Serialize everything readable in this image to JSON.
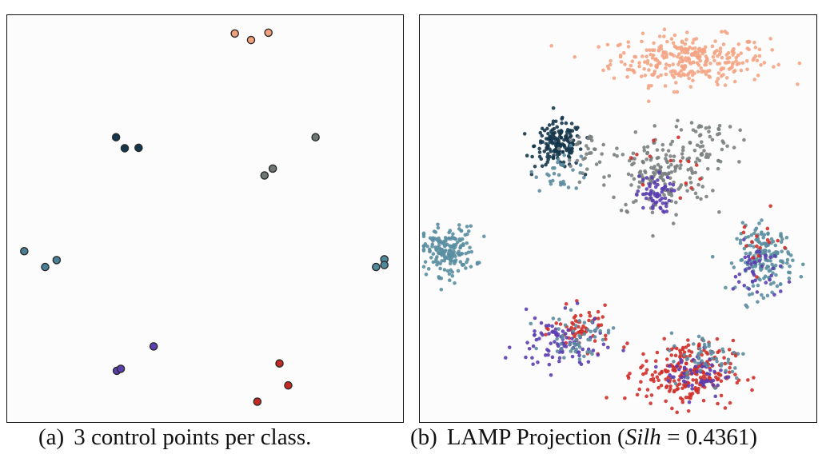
{
  "chart_data": [
    {
      "type": "scatter",
      "caption": {
        "label": "(a)",
        "text": "3 control points per class."
      },
      "xlim": [
        0,
        100
      ],
      "ylim": [
        0,
        100
      ],
      "grid": false,
      "point_style": "large-outlined",
      "classes": [
        {
          "color": "#f1a07e",
          "points": [
            [
              57.5,
              95.5
            ],
            [
              61.6,
              93.9
            ],
            [
              66.0,
              95.7
            ]
          ]
        },
        {
          "color": "#15374d",
          "points": [
            [
              27.5,
              70.0
            ],
            [
              29.7,
              67.3
            ],
            [
              33.2,
              67.4
            ]
          ]
        },
        {
          "color": "#6e7776",
          "points": [
            [
              77.9,
              70.0
            ],
            [
              65.0,
              60.6
            ],
            [
              67.1,
              62.3
            ]
          ]
        },
        {
          "color": "#4a8095",
          "points": [
            [
              4.3,
              42.0
            ],
            [
              9.6,
              38.1
            ],
            [
              12.5,
              39.8
            ]
          ]
        },
        {
          "color": "#508a9b",
          "points": [
            [
              93.2,
              38.1
            ],
            [
              95.3,
              40.0
            ],
            [
              95.3,
              38.6
            ]
          ]
        },
        {
          "color": "#5b3eb0",
          "points": [
            [
              37.0,
              18.6
            ],
            [
              27.7,
              12.6
            ],
            [
              28.7,
              13.1
            ]
          ]
        },
        {
          "color": "#c42a23",
          "points": [
            [
              68.8,
              14.4
            ],
            [
              71.0,
              9.0
            ],
            [
              63.2,
              5.0
            ]
          ]
        }
      ]
    },
    {
      "type": "scatter",
      "caption": {
        "label": "(b)",
        "text_prefix": "LAMP Projection (",
        "metric": "Silh",
        "text_suffix": " = 0.4361)"
      },
      "xlim": [
        0,
        100
      ],
      "ylim": [
        0,
        100
      ],
      "grid": false,
      "point_style": "small-dots",
      "clusters": [
        {
          "color": "#f4a484",
          "cx": 68,
          "cy": 89,
          "sx": 10,
          "sy": 3.0,
          "n": 300
        },
        {
          "color": "#15374d",
          "cx": 35,
          "cy": 68,
          "sx": 3.0,
          "sy": 2.8,
          "n": 170
        },
        {
          "color": "#5d8ca0",
          "cx": 36,
          "cy": 62,
          "sx": 3.5,
          "sy": 2.5,
          "n": 30
        },
        {
          "color": "#7a7f7f",
          "cx": 42,
          "cy": 67,
          "sx": 3.0,
          "sy": 2.0,
          "n": 30
        },
        {
          "color": "#7a7f7f",
          "cx": 60,
          "cy": 60,
          "sx": 6.5,
          "sy": 5.0,
          "n": 160
        },
        {
          "color": "#7a7f7f",
          "cx": 71,
          "cy": 69,
          "sx": 4.5,
          "sy": 3.5,
          "n": 60
        },
        {
          "color": "#5b3eb0",
          "cx": 59,
          "cy": 56,
          "sx": 2.2,
          "sy": 2.3,
          "n": 60
        },
        {
          "color": "#d0302a",
          "cx": 62,
          "cy": 63,
          "sx": 4.5,
          "sy": 5.0,
          "n": 14
        },
        {
          "color": "#5a8ea1",
          "cx": 7,
          "cy": 42,
          "sx": 3.5,
          "sy": 3.0,
          "n": 180
        },
        {
          "color": "#5a8ea1",
          "cx": 87,
          "cy": 40,
          "sx": 3.5,
          "sy": 4.0,
          "n": 170
        },
        {
          "color": "#5b3eb0",
          "cx": 85,
          "cy": 37,
          "sx": 3.0,
          "sy": 3.5,
          "n": 40
        },
        {
          "color": "#d0302a",
          "cx": 85,
          "cy": 44,
          "sx": 3.0,
          "sy": 3.5,
          "n": 16
        },
        {
          "color": "#d0302a",
          "cx": 41,
          "cy": 23,
          "sx": 3.5,
          "sy": 2.5,
          "n": 60
        },
        {
          "color": "#5b3eb0",
          "cx": 35,
          "cy": 19,
          "sx": 5.5,
          "sy": 3.5,
          "n": 90
        },
        {
          "color": "#5d8ca0",
          "cx": 40,
          "cy": 21,
          "sx": 4.0,
          "sy": 2.5,
          "n": 50
        },
        {
          "color": "#d0302a",
          "cx": 67,
          "cy": 12,
          "sx": 6.0,
          "sy": 4.0,
          "n": 230
        },
        {
          "color": "#5b3eb0",
          "cx": 70,
          "cy": 12,
          "sx": 4.0,
          "sy": 3.0,
          "n": 60
        },
        {
          "color": "#5d8ca0",
          "cx": 73,
          "cy": 16,
          "sx": 5.0,
          "sy": 3.0,
          "n": 50
        }
      ]
    }
  ]
}
